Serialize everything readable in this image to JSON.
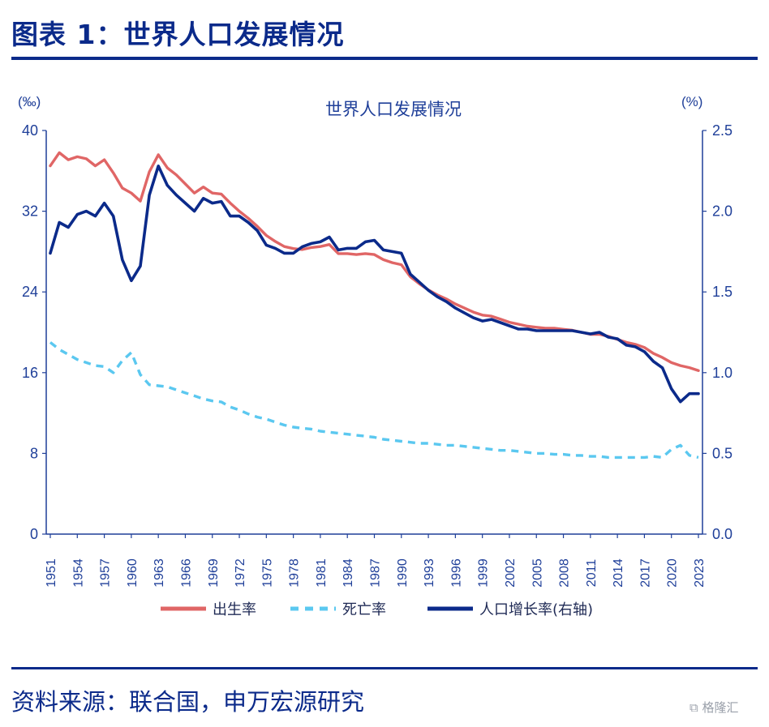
{
  "header": {
    "title": "图表 1：世界人口发展情况"
  },
  "footer": {
    "source": "资料来源：联合国，申万宏源研究",
    "watermark": "格隆汇"
  },
  "colors": {
    "birth": "#e06666",
    "death": "#5bc8f0",
    "growth": "#0b2a8a",
    "axis": "#1f3f99",
    "rule": "#0b2a8a"
  },
  "chart_data": {
    "type": "line",
    "title": "世界人口发展情况",
    "left_unit": "(‰)",
    "right_unit": "(%)",
    "x": [
      1951,
      1952,
      1953,
      1954,
      1955,
      1956,
      1957,
      1958,
      1959,
      1960,
      1961,
      1962,
      1963,
      1964,
      1965,
      1966,
      1967,
      1968,
      1969,
      1970,
      1971,
      1972,
      1973,
      1974,
      1975,
      1976,
      1977,
      1978,
      1979,
      1980,
      1981,
      1982,
      1983,
      1984,
      1985,
      1986,
      1987,
      1988,
      1989,
      1990,
      1991,
      1992,
      1993,
      1994,
      1995,
      1996,
      1997,
      1998,
      1999,
      2000,
      2001,
      2002,
      2003,
      2004,
      2005,
      2006,
      2007,
      2008,
      2009,
      2010,
      2011,
      2012,
      2013,
      2014,
      2015,
      2016,
      2017,
      2018,
      2019,
      2020,
      2021,
      2022,
      2023
    ],
    "x_ticks": [
      1951,
      1954,
      1957,
      1960,
      1963,
      1966,
      1969,
      1972,
      1975,
      1978,
      1981,
      1984,
      1987,
      1990,
      1993,
      1996,
      1999,
      2002,
      2005,
      2008,
      2011,
      2014,
      2017,
      2020,
      2023
    ],
    "left_axis": {
      "ylim": [
        0,
        40
      ],
      "ticks": [
        0,
        8,
        16,
        24,
        32,
        40
      ]
    },
    "right_axis": {
      "ylim": [
        0,
        2.5
      ],
      "ticks": [
        "0.0",
        "0.5",
        "1.0",
        "1.5",
        "2.0",
        "2.5"
      ]
    },
    "legend_position": "bottom",
    "series": [
      {
        "name": "出生率",
        "axis": "left",
        "style": "solid",
        "color": "#e06666",
        "values": [
          36.5,
          37.8,
          37.1,
          37.4,
          37.2,
          36.5,
          37.1,
          35.8,
          34.3,
          33.8,
          33.0,
          35.9,
          37.6,
          36.3,
          35.6,
          34.7,
          33.8,
          34.4,
          33.8,
          33.7,
          32.8,
          32.0,
          31.3,
          30.5,
          29.6,
          29.0,
          28.5,
          28.3,
          28.2,
          28.4,
          28.5,
          28.7,
          27.8,
          27.8,
          27.7,
          27.8,
          27.7,
          27.2,
          26.9,
          26.7,
          25.5,
          24.8,
          24.2,
          23.7,
          23.3,
          22.8,
          22.4,
          22.0,
          21.7,
          21.6,
          21.3,
          21.0,
          20.8,
          20.6,
          20.5,
          20.4,
          20.4,
          20.3,
          20.2,
          20.0,
          19.8,
          19.8,
          19.6,
          19.3,
          19.0,
          18.8,
          18.5,
          17.9,
          17.5,
          17.0,
          16.7,
          16.5,
          16.2
        ]
      },
      {
        "name": "死亡率",
        "axis": "left",
        "style": "dashed",
        "color": "#5bc8f0",
        "values": [
          19.0,
          18.3,
          17.8,
          17.3,
          17.0,
          16.7,
          16.6,
          16.0,
          17.2,
          18.0,
          15.8,
          14.8,
          14.7,
          14.6,
          14.3,
          14.0,
          13.7,
          13.4,
          13.2,
          13.1,
          12.6,
          12.3,
          11.9,
          11.6,
          11.4,
          11.1,
          10.8,
          10.6,
          10.5,
          10.4,
          10.2,
          10.1,
          10.0,
          9.9,
          9.8,
          9.7,
          9.6,
          9.4,
          9.3,
          9.2,
          9.1,
          9.0,
          9.0,
          8.9,
          8.8,
          8.8,
          8.7,
          8.6,
          8.5,
          8.4,
          8.3,
          8.3,
          8.2,
          8.1,
          8.0,
          8.0,
          7.9,
          7.9,
          7.8,
          7.8,
          7.7,
          7.7,
          7.6,
          7.6,
          7.6,
          7.6,
          7.6,
          7.7,
          7.6,
          8.4,
          8.8,
          7.8,
          7.6
        ]
      },
      {
        "name": "人口增长率(右轴)",
        "axis": "right",
        "style": "solid",
        "color": "#0b2a8a",
        "values": [
          1.74,
          1.93,
          1.9,
          1.98,
          2.0,
          1.97,
          2.05,
          1.97,
          1.7,
          1.57,
          1.66,
          2.1,
          2.28,
          2.16,
          2.1,
          2.05,
          2.0,
          2.08,
          2.05,
          2.06,
          1.97,
          1.97,
          1.93,
          1.88,
          1.79,
          1.77,
          1.74,
          1.74,
          1.78,
          1.8,
          1.81,
          1.84,
          1.76,
          1.77,
          1.77,
          1.81,
          1.82,
          1.76,
          1.75,
          1.74,
          1.61,
          1.56,
          1.51,
          1.47,
          1.44,
          1.4,
          1.37,
          1.34,
          1.32,
          1.33,
          1.31,
          1.29,
          1.27,
          1.27,
          1.26,
          1.26,
          1.26,
          1.26,
          1.26,
          1.25,
          1.24,
          1.25,
          1.22,
          1.21,
          1.17,
          1.16,
          1.13,
          1.07,
          1.03,
          0.9,
          0.82,
          0.87,
          0.87
        ]
      }
    ]
  }
}
